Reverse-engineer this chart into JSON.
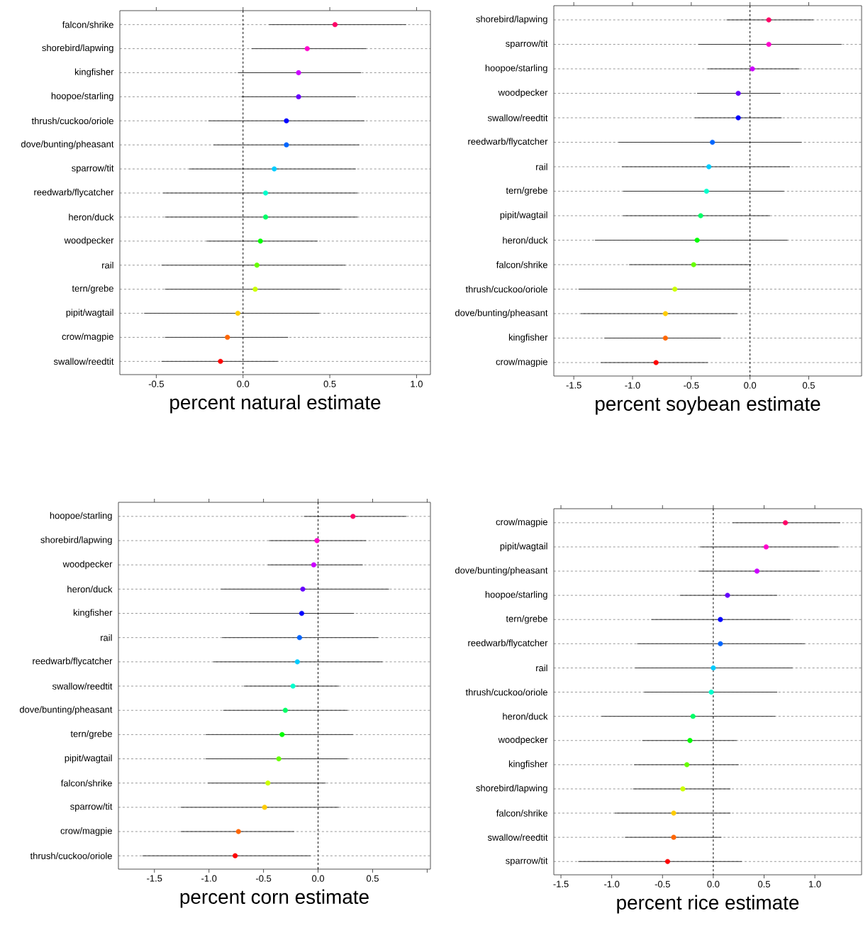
{
  "chart_data": [
    {
      "type": "scatter",
      "orientation": "horizontal",
      "marker": "circle",
      "grid": "y",
      "xlabel": "percent natural estimate",
      "categories": [
        "falcon/shrike",
        "shorebird/lapwing",
        "kingfisher",
        "hoopoe/starling",
        "thrush/cuckoo/oriole",
        "dove/bunting/pheasant",
        "sparrow/tit",
        "reedwarb/flycatcher",
        "heron/duck",
        "woodpecker",
        "rail",
        "tern/grebe",
        "pipit/wagtail",
        "crow/magpie",
        "swallow/reedtit"
      ],
      "values": [
        0.53,
        0.37,
        0.32,
        0.32,
        0.25,
        0.25,
        0.18,
        0.13,
        0.13,
        0.1,
        0.08,
        0.07,
        -0.03,
        -0.09,
        -0.13
      ],
      "errors": [
        [
          0.15,
          0.94
        ],
        [
          0.05,
          0.71
        ],
        [
          -0.03,
          0.68
        ],
        [
          -0.01,
          0.65
        ],
        [
          -0.2,
          0.7
        ],
        [
          -0.17,
          0.67
        ],
        [
          -0.31,
          0.65
        ],
        [
          -0.46,
          0.66
        ],
        [
          -0.45,
          0.66
        ],
        [
          -0.21,
          0.43
        ],
        [
          -0.47,
          0.59
        ],
        [
          -0.45,
          0.56
        ],
        [
          -0.57,
          0.44
        ],
        [
          -0.45,
          0.26
        ],
        [
          -0.47,
          0.2
        ]
      ],
      "colors": [
        "#ff0066",
        "#ff00cc",
        "#cc00ff",
        "#6600ff",
        "#0000ff",
        "#0066ff",
        "#00ccff",
        "#00ffcc",
        "#00ff66",
        "#00ff00",
        "#66ff00",
        "#ccff00",
        "#ffcc00",
        "#ff6600",
        "#ff0000"
      ],
      "xlim": [
        -0.71,
        1.08
      ],
      "xticks": [
        -0.5,
        {
          "value": 0,
          "label": "0.0"
        },
        0.5,
        {
          "value": 1,
          "label": "1.0"
        }
      ],
      "ref_lines": [
        {
          "axis": "x",
          "value": 0,
          "line_style": "dashed",
          "color": "#000000"
        }
      ]
    },
    {
      "type": "scatter",
      "orientation": "horizontal",
      "marker": "circle",
      "grid": "y",
      "xlabel": "percent soybean estimate",
      "categories": [
        "shorebird/lapwing",
        "sparrow/tit",
        "hoopoe/starling",
        "woodpecker",
        "swallow/reedtit",
        "reedwarb/flycatcher",
        "rail",
        "tern/grebe",
        "pipit/wagtail",
        "heron/duck",
        "falcon/shrike",
        "thrush/cuckoo/oriole",
        "dove/bunting/pheasant",
        "kingfisher",
        "crow/magpie"
      ],
      "values": [
        0.16,
        0.16,
        0.02,
        -0.1,
        -0.1,
        -0.32,
        -0.35,
        -0.37,
        -0.42,
        -0.45,
        -0.48,
        -0.64,
        -0.72,
        -0.72,
        -0.8
      ],
      "errors": [
        [
          -0.2,
          0.54
        ],
        [
          -0.44,
          0.78
        ],
        [
          -0.36,
          0.42
        ],
        [
          -0.45,
          0.26
        ],
        [
          -0.47,
          0.27
        ],
        [
          -1.12,
          0.44
        ],
        [
          -1.09,
          0.34
        ],
        [
          -1.08,
          0.29
        ],
        [
          -1.08,
          0.17
        ],
        [
          -1.32,
          0.32
        ],
        [
          -1.03,
          0.01
        ],
        [
          -1.46,
          0.01
        ],
        [
          -1.44,
          -0.11
        ],
        [
          -1.24,
          -0.25
        ],
        [
          -1.27,
          -0.36
        ]
      ],
      "colors": [
        "#ff0066",
        "#ff00cc",
        "#cc00ff",
        "#6600ff",
        "#0000ff",
        "#0066ff",
        "#00ccff",
        "#00ffcc",
        "#00ff66",
        "#00ff00",
        "#66ff00",
        "#ccff00",
        "#ffcc00",
        "#ff6600",
        "#ff0000"
      ],
      "xlim": [
        -1.67,
        0.95
      ],
      "xticks": [
        -1.5,
        {
          "value": -1,
          "label": "-1.0"
        },
        -0.5,
        {
          "value": 0,
          "label": "0.0"
        },
        0.5
      ],
      "ref_lines": [
        {
          "axis": "x",
          "value": 0,
          "line_style": "dashed",
          "color": "#000000"
        }
      ]
    },
    {
      "type": "scatter",
      "orientation": "horizontal",
      "marker": "circle",
      "grid": "y",
      "xlabel": "percent corn estimate",
      "categories": [
        "hoopoe/starling",
        "shorebird/lapwing",
        "woodpecker",
        "heron/duck",
        "kingfisher",
        "rail",
        "reedwarb/flycatcher",
        "swallow/reedtit",
        "dove/bunting/pheasant",
        "tern/grebe",
        "pipit/wagtail",
        "falcon/shrike",
        "sparrow/tit",
        "crow/magpie",
        "thrush/cuckoo/oriole"
      ],
      "values": [
        0.32,
        -0.01,
        -0.04,
        -0.14,
        -0.15,
        -0.17,
        -0.19,
        -0.23,
        -0.3,
        -0.33,
        -0.36,
        -0.46,
        -0.49,
        -0.73,
        -0.76
      ],
      "errors": [
        [
          -0.13,
          0.81
        ],
        [
          -0.45,
          0.44
        ],
        [
          -0.46,
          0.41
        ],
        [
          -0.89,
          0.65
        ],
        [
          -0.63,
          0.33
        ],
        [
          -0.88,
          0.55
        ],
        [
          -0.96,
          0.59
        ],
        [
          -0.68,
          0.19
        ],
        [
          -0.87,
          0.27
        ],
        [
          -1.03,
          0.32
        ],
        [
          -1.03,
          0.27
        ],
        [
          -1.01,
          0.07
        ],
        [
          -1.26,
          0.19
        ],
        [
          -1.26,
          -0.22
        ],
        [
          -1.61,
          -0.07
        ]
      ],
      "colors": [
        "#ff0066",
        "#ff00cc",
        "#cc00ff",
        "#6600ff",
        "#0000ff",
        "#0066ff",
        "#00ccff",
        "#00ffcc",
        "#00ff66",
        "#00ff00",
        "#66ff00",
        "#ccff00",
        "#ffcc00",
        "#ff6600",
        "#ff0000"
      ],
      "xlim": [
        -1.83,
        1.03
      ],
      "xticks": [
        -1.5,
        {
          "value": -1,
          "label": "-1.0"
        },
        -0.5,
        {
          "value": 0,
          "label": "0.0"
        },
        0.5,
        {
          "value": 1,
          "label": null
        }
      ],
      "ref_lines": [
        {
          "axis": "x",
          "value": 0,
          "line_style": "dashed",
          "color": "#000000"
        }
      ]
    },
    {
      "type": "scatter",
      "orientation": "horizontal",
      "marker": "circle",
      "grid": "y",
      "xlabel": "percent rice estimate",
      "categories": [
        "crow/magpie",
        "pipit/wagtail",
        "dove/bunting/pheasant",
        "hoopoe/starling",
        "tern/grebe",
        "reedwarb/flycatcher",
        "rail",
        "thrush/cuckoo/oriole",
        "heron/duck",
        "woodpecker",
        "kingfisher",
        "shorebird/lapwing",
        "falcon/shrike",
        "swallow/reedtit",
        "sparrow/tit"
      ],
      "values": [
        0.71,
        0.52,
        0.43,
        0.14,
        0.07,
        0.07,
        0.0,
        -0.02,
        -0.2,
        -0.23,
        -0.26,
        -0.3,
        -0.39,
        -0.39,
        -0.45
      ],
      "errors": [
        [
          0.19,
          1.25
        ],
        [
          -0.13,
          1.23
        ],
        [
          -0.14,
          1.05
        ],
        [
          -0.33,
          0.63
        ],
        [
          -0.61,
          0.76
        ],
        [
          -0.75,
          0.9
        ],
        [
          -0.77,
          0.78
        ],
        [
          -0.68,
          0.63
        ],
        [
          -1.1,
          0.61
        ],
        [
          -0.7,
          0.23
        ],
        [
          -0.78,
          0.25
        ],
        [
          -0.79,
          0.17
        ],
        [
          -0.97,
          0.17
        ],
        [
          -0.87,
          0.08
        ],
        [
          -1.33,
          0.28
        ]
      ],
      "colors": [
        "#ff0066",
        "#ff00cc",
        "#cc00ff",
        "#6600ff",
        "#0000ff",
        "#0066ff",
        "#00ccff",
        "#00ffcc",
        "#00ff66",
        "#00ff00",
        "#66ff00",
        "#ccff00",
        "#ffcc00",
        "#ff6600",
        "#ff0000"
      ],
      "xlim": [
        -1.57,
        1.46
      ],
      "xticks": [
        -1.5,
        {
          "value": -1,
          "label": "-1.0"
        },
        -0.5,
        {
          "value": 0,
          "label": "0.0"
        },
        0.5,
        {
          "value": 1,
          "label": "1.0"
        }
      ],
      "ref_lines": [
        {
          "axis": "x",
          "value": 0,
          "line_style": "dashed",
          "color": "#000000"
        }
      ]
    }
  ]
}
